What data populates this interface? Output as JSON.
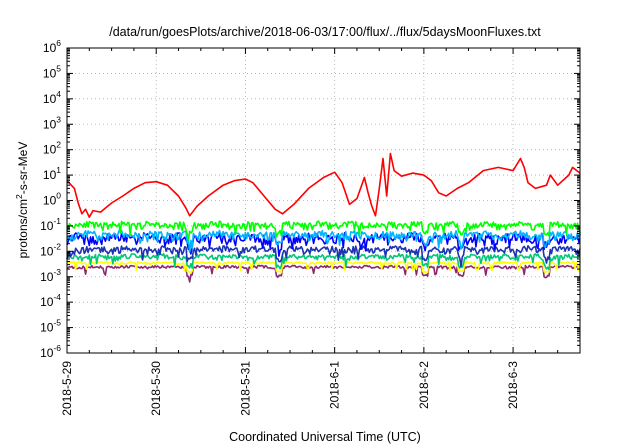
{
  "chart_data": {
    "type": "line",
    "title": "/data/run/goesPlots/archive/2018-06-03/17:00/flux/../flux/5daysMoonFluxes.txt",
    "xlabel": "Coordinated Universal Time (UTC)",
    "ylabel": "protons/cm2-s-sr-MeV",
    "ylabel_parts": {
      "pre": "protons/cm",
      "sup": "2",
      "post": "-s-sr-MeV"
    },
    "xlim": [
      "2018-05-29",
      "2018-06-03 18:00"
    ],
    "x_ticks": [
      "2018-5-29",
      "2018-5-30",
      "2018-5-31",
      "2018-6-1",
      "2018-6-2",
      "2018-6-3"
    ],
    "y_scale": "log",
    "ylim": [
      1e-06,
      1000000.0
    ],
    "y_ticks": [
      {
        "base": "10",
        "exp": "-6"
      },
      {
        "base": "10",
        "exp": "-5"
      },
      {
        "base": "10",
        "exp": "-4"
      },
      {
        "base": "10",
        "exp": "-3"
      },
      {
        "base": "10",
        "exp": "-2"
      },
      {
        "base": "10",
        "exp": "-1"
      },
      {
        "base": "10",
        "exp": "0"
      },
      {
        "base": "10",
        "exp": "1"
      },
      {
        "base": "10",
        "exp": "2"
      },
      {
        "base": "10",
        "exp": "3"
      },
      {
        "base": "10",
        "exp": "4"
      },
      {
        "base": "10",
        "exp": "5"
      },
      {
        "base": "10",
        "exp": "6"
      }
    ],
    "grid": true,
    "legend": "none",
    "series": [
      {
        "color": "#ff0000",
        "points": [
          [
            "2018-05-29 00:00",
            6
          ],
          [
            "2018-05-29 02:00",
            3
          ],
          [
            "2018-05-29 03:00",
            0.8
          ],
          [
            "2018-05-29 04:00",
            0.3
          ],
          [
            "2018-05-29 05:00",
            0.45
          ],
          [
            "2018-05-29 06:00",
            0.22
          ],
          [
            "2018-05-29 07:00",
            0.4
          ],
          [
            "2018-05-29 09:00",
            0.35
          ],
          [
            "2018-05-29 12:00",
            0.8
          ],
          [
            "2018-05-29 15:00",
            1.5
          ],
          [
            "2018-05-29 18:00",
            3
          ],
          [
            "2018-05-29 21:00",
            5
          ],
          [
            "2018-05-30 00:00",
            5.5
          ],
          [
            "2018-05-30 03:00",
            4
          ],
          [
            "2018-05-30 06:00",
            1.5
          ],
          [
            "2018-05-30 08:00",
            0.5
          ],
          [
            "2018-05-30 09:00",
            0.25
          ],
          [
            "2018-05-30 11:00",
            0.6
          ],
          [
            "2018-05-30 14:00",
            1.5
          ],
          [
            "2018-05-30 18:00",
            4
          ],
          [
            "2018-05-30 21:00",
            6
          ],
          [
            "2018-05-31 00:00",
            7
          ],
          [
            "2018-05-31 02:00",
            5
          ],
          [
            "2018-05-31 05:00",
            1.5
          ],
          [
            "2018-05-31 08:00",
            0.45
          ],
          [
            "2018-05-31 10:00",
            0.3
          ],
          [
            "2018-05-31 13:00",
            0.7
          ],
          [
            "2018-05-31 17:00",
            3
          ],
          [
            "2018-05-31 21:00",
            8
          ],
          [
            "2018-06-01 00:00",
            13
          ],
          [
            "2018-06-01 02:00",
            5
          ],
          [
            "2018-06-01 04:00",
            0.7
          ],
          [
            "2018-06-01 06:00",
            1.2
          ],
          [
            "2018-06-01 08:00",
            8
          ],
          [
            "2018-06-01 09:00",
            2
          ],
          [
            "2018-06-01 10:00",
            0.6
          ],
          [
            "2018-06-01 11:00",
            0.25
          ],
          [
            "2018-06-01 12:00",
            3
          ],
          [
            "2018-06-01 13:00",
            45
          ],
          [
            "2018-06-01 14:00",
            1.5
          ],
          [
            "2018-06-01 15:00",
            70
          ],
          [
            "2018-06-01 16:00",
            15
          ],
          [
            "2018-06-01 18:00",
            9
          ],
          [
            "2018-06-01 21:00",
            12
          ],
          [
            "2018-06-02 00:00",
            10
          ],
          [
            "2018-06-02 02:00",
            6
          ],
          [
            "2018-06-02 04:00",
            2
          ],
          [
            "2018-06-02 06:00",
            1.5
          ],
          [
            "2018-06-02 09:00",
            3
          ],
          [
            "2018-06-02 12:00",
            5
          ],
          [
            "2018-06-02 16:00",
            15
          ],
          [
            "2018-06-02 20:00",
            20
          ],
          [
            "2018-06-03 00:00",
            15
          ],
          [
            "2018-06-03 02:00",
            45
          ],
          [
            "2018-06-03 03:00",
            20
          ],
          [
            "2018-06-03 04:00",
            5
          ],
          [
            "2018-06-03 06:00",
            3
          ],
          [
            "2018-06-03 09:00",
            4
          ],
          [
            "2018-06-03 10:00",
            10
          ],
          [
            "2018-06-03 12:00",
            4
          ],
          [
            "2018-06-03 15:00",
            10
          ],
          [
            "2018-06-03 16:00",
            20
          ],
          [
            "2018-06-03 18:00",
            12
          ]
        ]
      },
      {
        "color": "#00ff00",
        "base": 0.11,
        "amp": 0.3,
        "seed": 11
      },
      {
        "color": "#00b4ff",
        "base": 0.045,
        "amp": 0.35,
        "seed": 23
      },
      {
        "color": "#0000ff",
        "base": 0.035,
        "amp": 0.4,
        "seed": 37
      },
      {
        "color": "#1e32b4",
        "base": 0.012,
        "amp": 0.3,
        "seed": 53
      },
      {
        "color": "#00c878",
        "base": 0.006,
        "amp": 0.25,
        "seed": 71
      },
      {
        "color": "#ffff00",
        "base": 0.0035,
        "amp": 0.1,
        "seed": 83
      },
      {
        "color": "#8c286e",
        "base": 0.0024,
        "amp": 0.12,
        "seed": 97
      }
    ],
    "dips": [
      "2018-05-30 09:00",
      "2018-05-31 09:00",
      "2018-06-02 00:15",
      "2018-06-02 10:00",
      "2018-06-03 09:00"
    ]
  }
}
